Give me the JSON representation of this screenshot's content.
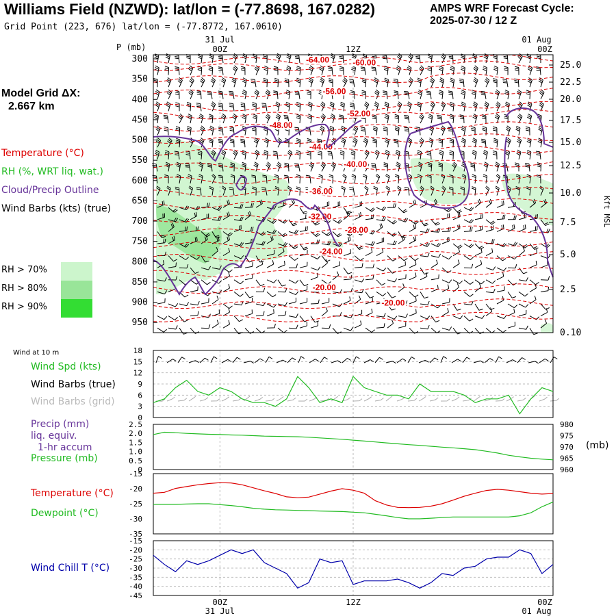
{
  "header": {
    "title": "Williams Field (NZWD):  lat/lon = (-77.8698, 167.0282)",
    "subtitle": "Grid Point (223, 676) lat/lon = (-77.8772, 167.0610)",
    "cycle_line1": "AMPS WRF Forecast Cycle:",
    "cycle_line2": "2025-07-30 / 12  Z",
    "model_grid_label": "Model Grid ΔX:",
    "model_grid_value": "2.667 km"
  },
  "legend_main": {
    "temperature": "Temperature (°C)",
    "rh": "RH (%, WRT liq. wat.)",
    "cloud": "Cloud/Precip Outline",
    "wind": "Wind Barbs (kts) (true)",
    "rh70": "RH > 70%",
    "rh80": "RH > 80%",
    "rh90": "RH > 90%"
  },
  "legend_panels": {
    "wind_title": "Wind at 10 m",
    "wind_spd": "Wind Spd (kts)",
    "wind_true": "Wind Barbs (true)",
    "wind_grid": "Wind Barbs (grid)",
    "precip1": "Precip (mm)",
    "precip2": "liq. equiv.",
    "precip3": "1-hr accum",
    "pressure": "Pressure (mb)",
    "pressure_unit": "(mb)",
    "temperature": "Temperature (°C)",
    "dewpoint": "Dewpoint (°C)",
    "wind_chill": "Wind Chill T (°C)"
  },
  "time_labels": {
    "top_date1": "31 Jul",
    "top_date2": "01 Aug",
    "bottom_date1": "31 Jul",
    "bottom_date2": "01 Aug",
    "t00a": "00Z",
    "t12": "12Z",
    "t00b": "00Z"
  },
  "colors": {
    "temperature": "#dd0000",
    "rh": "#22bb22",
    "cloud": "#663399",
    "dewpoint": "#22bb22",
    "wind_chill": "#0000aa",
    "rh70": "#ccf5cc",
    "rh80": "#99e599",
    "rh90": "#33dd33"
  },
  "chart_data": [
    {
      "type": "line",
      "panel": "cross-section",
      "y_label": "P (mb)",
      "y2_label": "Kft MSL",
      "pressure_ticks": [
        300,
        350,
        400,
        450,
        500,
        550,
        600,
        650,
        700,
        750,
        800,
        850,
        900,
        950
      ],
      "height_ticks": [
        "25.0",
        "22.5",
        "20.0",
        "17.5",
        "15.0",
        "12.5",
        "10.0",
        "7.5",
        "5.0",
        "2.5",
        "0.10"
      ],
      "x_range_hours": [
        0,
        36
      ],
      "temperature_contour_labels": [
        {
          "value": "-64.00",
          "hour": 14.8,
          "p": 308
        },
        {
          "value": "-60.00",
          "hour": 19.0,
          "p": 314
        },
        {
          "value": "-56.00",
          "hour": 16.3,
          "p": 385
        },
        {
          "value": "-52.00",
          "hour": 18.5,
          "p": 440
        },
        {
          "value": "-48.00",
          "hour": 11.5,
          "p": 469
        },
        {
          "value": "-44.00",
          "hour": 15.1,
          "p": 522
        },
        {
          "value": "-40.00",
          "hour": 18.2,
          "p": 565
        },
        {
          "value": "-36.00",
          "hour": 15.1,
          "p": 632
        },
        {
          "value": "-32.00",
          "hour": 15.0,
          "p": 694
        },
        {
          "value": "-28.00",
          "hour": 18.3,
          "p": 727
        },
        {
          "value": "-24.00",
          "hour": 16.0,
          "p": 780
        },
        {
          "value": "-20.00",
          "hour": 15.4,
          "p": 869
        },
        {
          "value": "-20.00",
          "hour": 21.6,
          "p": 907
        }
      ]
    },
    {
      "type": "line",
      "panel": "wind-10m",
      "x_range_hours": [
        0,
        36
      ],
      "ylim": [
        0,
        18
      ],
      "y_ticks": [
        0,
        3,
        6,
        9,
        12,
        15,
        18
      ],
      "series": [
        {
          "name": "Wind Spd (kts)",
          "values": [
            4,
            5,
            8,
            10,
            7,
            6,
            8,
            7,
            5,
            4,
            4,
            3,
            5,
            11,
            8,
            4,
            5,
            4,
            11,
            8,
            7,
            6,
            6,
            5,
            9,
            7,
            7,
            7,
            6,
            4,
            5,
            5,
            6,
            1,
            5,
            8,
            7
          ]
        }
      ]
    },
    {
      "type": "line",
      "panel": "precip-pressure",
      "x_range_hours": [
        0,
        36
      ],
      "ylim": [
        0,
        2.5
      ],
      "y_ticks": [
        "0",
        "0.5",
        "1.0",
        "1.5",
        "2.0",
        "2.5"
      ],
      "y2lim": [
        960,
        980
      ],
      "y2_ticks": [
        960,
        965,
        970,
        975,
        980
      ],
      "series": [
        {
          "name": "Pressure (mb)",
          "values": [
            975.5,
            976.5,
            976.3,
            976.0,
            975.8,
            975.6,
            975.5,
            975.3,
            975.2,
            975.0,
            974.8,
            974.7,
            974.6,
            974.5,
            974.3,
            974.0,
            973.7,
            973.4,
            973.0,
            972.6,
            972.2,
            971.8,
            971.4,
            971.0,
            970.7,
            970.3,
            969.9,
            969.6,
            969.2,
            968.8,
            968.1,
            967.3,
            966.3,
            965.6,
            965.0,
            964.6,
            964.3
          ]
        }
      ]
    },
    {
      "type": "line",
      "panel": "temp-dewpoint",
      "x_range_hours": [
        0,
        36
      ],
      "ylim": [
        -35,
        -15
      ],
      "y_ticks": [
        -35,
        -30,
        -25,
        -20,
        -15
      ],
      "series": [
        {
          "name": "Temperature (°C)",
          "values": [
            -21.5,
            -21.2,
            -19.9,
            -19.3,
            -18.7,
            -18.3,
            -18.0,
            -18.1,
            -18.7,
            -19.7,
            -20.7,
            -21.6,
            -22.7,
            -23.0,
            -22.8,
            -21.8,
            -20.8,
            -20.0,
            -20.5,
            -21.5,
            -24.0,
            -25.4,
            -26.2,
            -26.3,
            -26.2,
            -25.8,
            -25.0,
            -23.8,
            -22.5,
            -21.5,
            -20.6,
            -20.2,
            -20.5,
            -21.0,
            -21.5,
            -21.8,
            -21.6
          ]
        },
        {
          "name": "Dewpoint (°C)",
          "values": [
            -25.2,
            -25.2,
            -25.2,
            -25.1,
            -25.0,
            -25.0,
            -25.3,
            -25.6,
            -26.0,
            -26.5,
            -26.8,
            -27.0,
            -27.1,
            -27.2,
            -27.3,
            -27.4,
            -27.5,
            -27.6,
            -27.8,
            -28.0,
            -28.5,
            -29.0,
            -29.6,
            -30.0,
            -30.0,
            -29.8,
            -29.6,
            -29.4,
            -29.4,
            -29.4,
            -29.4,
            -29.4,
            -29.4,
            -29.0,
            -28.0,
            -26.0,
            -24.4
          ]
        }
      ]
    },
    {
      "type": "line",
      "panel": "wind-chill",
      "x_range_hours": [
        0,
        36
      ],
      "ylim": [
        -45,
        -15
      ],
      "y_ticks": [
        -45,
        -40,
        -35,
        -30,
        -25,
        -20,
        -15
      ],
      "series": [
        {
          "name": "Wind Chill T (°C)",
          "values": [
            -23,
            -28,
            -32,
            -26,
            -28,
            -26,
            -23,
            -20,
            -22,
            -20,
            -27,
            -30,
            -33,
            -41,
            -38,
            -25,
            -27,
            -26,
            -39,
            -37,
            -37,
            -37,
            -36,
            -38,
            -41,
            -38,
            -33,
            -34,
            -30,
            -29,
            -25,
            -24,
            -24,
            -20,
            -22,
            -33,
            -28
          ]
        }
      ]
    }
  ]
}
